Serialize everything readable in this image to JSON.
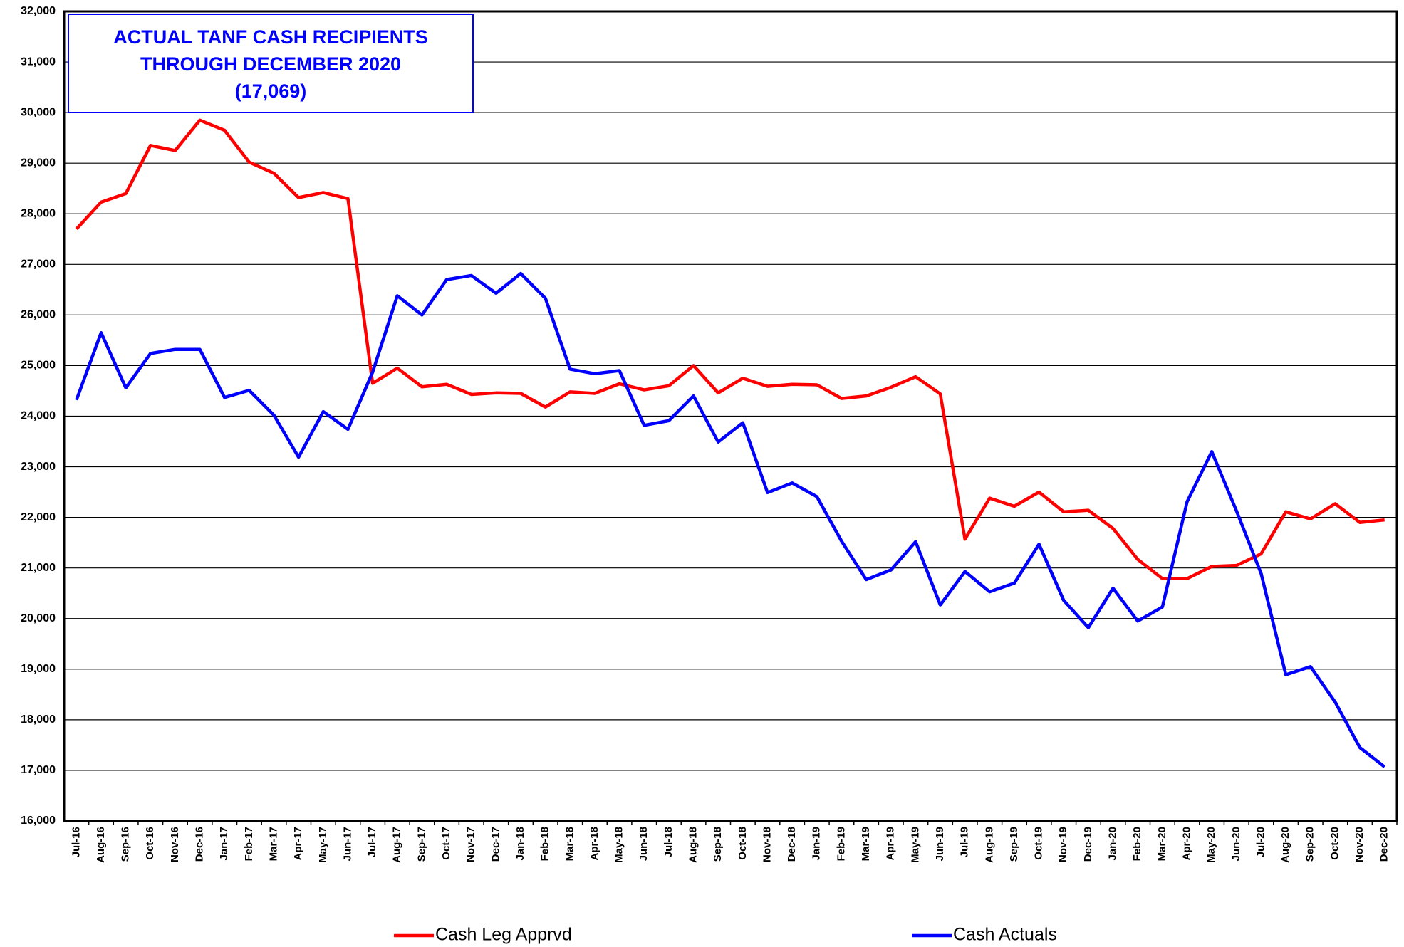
{
  "chart_data": {
    "type": "line",
    "title": [
      "ACTUAL TANF CASH RECIPIENTS",
      "THROUGH DECEMBER 2020",
      "(17,069)"
    ],
    "categories": [
      "Jul-16",
      "Aug-16",
      "Sep-16",
      "Oct-16",
      "Nov-16",
      "Dec-16",
      "Jan-17",
      "Feb-17",
      "Mar-17",
      "Apr-17",
      "May-17",
      "Jun-17",
      "Jul-17",
      "Aug-17",
      "Sep-17",
      "Oct-17",
      "Nov-17",
      "Dec-17",
      "Jan-18",
      "Feb-18",
      "Mar-18",
      "Apr-18",
      "May-18",
      "Jun-18",
      "Jul-18",
      "Aug-18",
      "Sep-18",
      "Oct-18",
      "Nov-18",
      "Dec-18",
      "Jan-19",
      "Feb-19",
      "Mar-19",
      "Apr-19",
      "May-19",
      "Jun-19",
      "Jul-19",
      "Aug-19",
      "Sep-19",
      "Oct-19",
      "Nov-19",
      "Dec-19",
      "Jan-20",
      "Feb-20",
      "Mar-20",
      "Apr-20",
      "May-20",
      "Jun-20",
      "Jul-20",
      "Aug-20",
      "Sep-20",
      "Oct-20",
      "Nov-20",
      "Dec-20"
    ],
    "series": [
      {
        "name": "Cash Leg Apprvd",
        "color": "#ff0000",
        "values": [
          27700,
          28230,
          28400,
          29350,
          29250,
          29850,
          29650,
          29020,
          28800,
          28320,
          28420,
          28300,
          24650,
          24950,
          24580,
          24630,
          24430,
          24460,
          24450,
          24180,
          24480,
          24450,
          24640,
          24520,
          24600,
          25000,
          24460,
          24750,
          24590,
          24630,
          24620,
          24350,
          24400,
          24570,
          24780,
          24440,
          21570,
          22380,
          22220,
          22500,
          22110,
          22140,
          21780,
          21170,
          20790,
          20790,
          21030,
          21050,
          21280,
          22110,
          21970,
          22270,
          21900,
          21950
        ]
      },
      {
        "name": "Cash Actuals",
        "color": "#0000ff",
        "values": [
          24320,
          25650,
          24560,
          25240,
          25320,
          25320,
          24370,
          24510,
          24020,
          23190,
          24090,
          23740,
          24870,
          26380,
          26000,
          26700,
          26780,
          26430,
          26820,
          26330,
          24930,
          24840,
          24900,
          23820,
          23910,
          24400,
          23490,
          23870,
          22490,
          22680,
          22410,
          21530,
          20770,
          20960,
          21520,
          20270,
          20930,
          20530,
          20700,
          21470,
          20360,
          19820,
          20600,
          19950,
          20230,
          22310,
          23300,
          22130,
          20890,
          18890,
          19050,
          18350,
          17450,
          17069
        ]
      }
    ],
    "ylim": [
      16000,
      32000
    ],
    "yticks": [
      {
        "value": 16000,
        "label": "16,000"
      },
      {
        "value": 17000,
        "label": "17,000"
      },
      {
        "value": 18000,
        "label": "18,000"
      },
      {
        "value": 19000,
        "label": "19,000"
      },
      {
        "value": 20000,
        "label": "20,000"
      },
      {
        "value": 21000,
        "label": "21,000"
      },
      {
        "value": 22000,
        "label": "22,000"
      },
      {
        "value": 23000,
        "label": "23,000"
      },
      {
        "value": 24000,
        "label": "24,000"
      },
      {
        "value": 25000,
        "label": "25,000"
      },
      {
        "value": 26000,
        "label": "26,000"
      },
      {
        "value": 27000,
        "label": "27,000"
      },
      {
        "value": 28000,
        "label": "28,000"
      },
      {
        "value": 29000,
        "label": "29,000"
      },
      {
        "value": 30000,
        "label": "30,000"
      },
      {
        "value": 31000,
        "label": "31,000"
      },
      {
        "value": 32000,
        "label": "32,000"
      }
    ],
    "grid": true,
    "legend": "bottom"
  }
}
